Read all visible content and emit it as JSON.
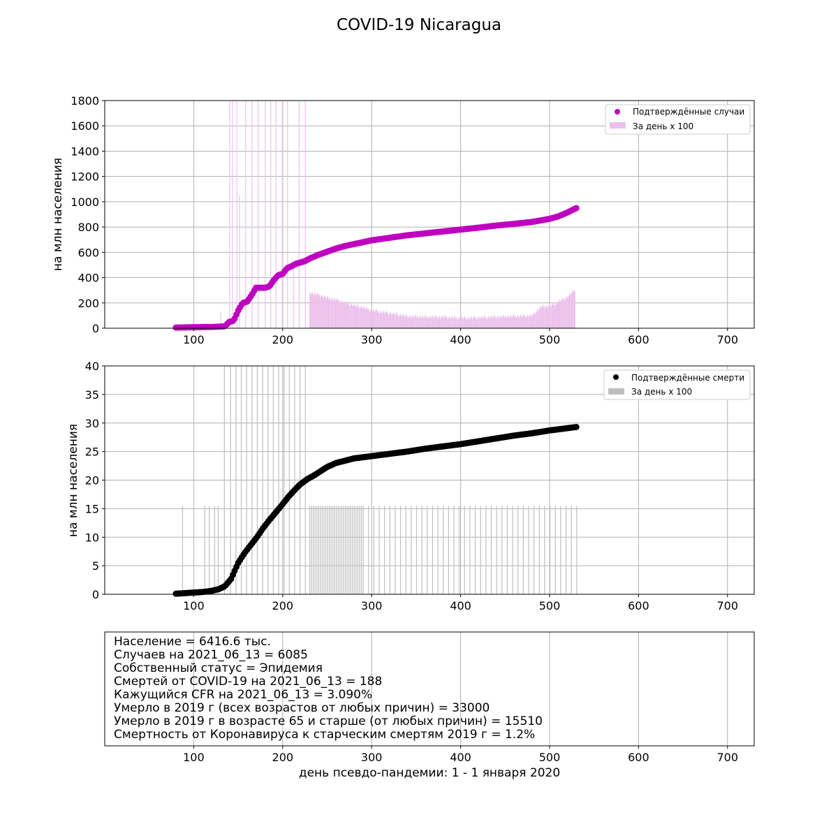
{
  "title": "COVID-19 Nicaragua",
  "chart_data": [
    {
      "type": "scatter",
      "ylabel": "на млн населения",
      "xlim": [
        0,
        730
      ],
      "ylim": [
        0,
        1800
      ],
      "xticks": [
        "100",
        "200",
        "300",
        "400",
        "500",
        "600",
        "700"
      ],
      "yticks": [
        "0",
        "200",
        "400",
        "600",
        "800",
        "1000",
        "1200",
        "1400",
        "1600",
        "1800"
      ],
      "grid": true,
      "legend_position": "top-right",
      "series": [
        {
          "name": "Подтверждённые случаи",
          "kind": "scatter",
          "color": "#bf00bf",
          "x": [
            80,
            100,
            120,
            135,
            140,
            145,
            150,
            155,
            160,
            165,
            170,
            175,
            180,
            185,
            190,
            195,
            200,
            205,
            210,
            215,
            220,
            225,
            230,
            240,
            250,
            260,
            270,
            280,
            290,
            300,
            320,
            340,
            360,
            380,
            400,
            420,
            440,
            460,
            480,
            500,
            510,
            520,
            530
          ],
          "y": [
            5,
            8,
            10,
            15,
            50,
            60,
            140,
            200,
            210,
            260,
            320,
            320,
            320,
            330,
            380,
            420,
            430,
            475,
            490,
            510,
            520,
            530,
            550,
            580,
            605,
            630,
            650,
            665,
            680,
            695,
            715,
            735,
            750,
            765,
            780,
            795,
            812,
            825,
            840,
            865,
            885,
            915,
            950
          ]
        },
        {
          "name": "За день х 100",
          "kind": "bar",
          "color": "#ecc0ec",
          "x": [
            230,
            240,
            250,
            260,
            270,
            280,
            290,
            300,
            320,
            340,
            360,
            380,
            400,
            420,
            440,
            460,
            480,
            490,
            500,
            510,
            520,
            528
          ],
          "y": [
            280,
            265,
            240,
            225,
            200,
            180,
            165,
            140,
            120,
            95,
            90,
            90,
            80,
            85,
            90,
            95,
            100,
            170,
            175,
            210,
            250,
            305
          ],
          "spikes_x": [
            130,
            140,
            143,
            148,
            151,
            158,
            165,
            172,
            180,
            186,
            192,
            199,
            205,
            212,
            218,
            225
          ],
          "spikes_y": [
            130,
            1800,
            1800,
            1800,
            1050,
            1800,
            1800,
            1800,
            1800,
            1800,
            1800,
            1800,
            1800,
            500,
            1800,
            1800
          ]
        }
      ]
    },
    {
      "type": "scatter",
      "ylabel": "на млн населения",
      "xlim": [
        0,
        730
      ],
      "ylim": [
        0,
        40
      ],
      "xticks": [
        "100",
        "200",
        "300",
        "400",
        "500",
        "600",
        "700"
      ],
      "yticks": [
        "0",
        "5",
        "10",
        "15",
        "20",
        "25",
        "30",
        "35",
        "40"
      ],
      "grid": true,
      "legend_position": "top-right",
      "series": [
        {
          "name": "Подтверждённые смерти",
          "kind": "scatter",
          "color": "#000000",
          "x": [
            80,
            90,
            100,
            110,
            120,
            128,
            135,
            142,
            150,
            157,
            164,
            171,
            178,
            185,
            192,
            199,
            206,
            213,
            220,
            228,
            235,
            242,
            250,
            260,
            270,
            280,
            290,
            300,
            320,
            340,
            360,
            380,
            400,
            420,
            440,
            460,
            480,
            500,
            515,
            530
          ],
          "y": [
            0.1,
            0.2,
            0.3,
            0.4,
            0.6,
            0.9,
            1.4,
            2.7,
            5.5,
            7.2,
            8.6,
            10.0,
            11.6,
            13.0,
            14.3,
            15.6,
            17.0,
            18.2,
            19.3,
            20.2,
            20.8,
            21.5,
            22.3,
            23.0,
            23.4,
            23.8,
            24.0,
            24.2,
            24.6,
            25.0,
            25.5,
            25.9,
            26.3,
            26.8,
            27.3,
            27.8,
            28.2,
            28.7,
            29.0,
            29.3
          ]
        },
        {
          "name": "За день х 100",
          "kind": "bar",
          "color": "#bfbfbf",
          "spikes_x": [
            87,
            112,
            117,
            123,
            127,
            134,
            141,
            147,
            153,
            159,
            165,
            171,
            177,
            183,
            189,
            195,
            201,
            207,
            213,
            219,
            225
          ],
          "spikes_y": [
            15.5,
            15.5,
            15.5,
            15.5,
            15.5,
            40,
            40,
            40,
            40,
            40,
            40,
            40,
            40,
            40,
            40,
            40,
            40,
            40,
            40,
            40,
            40
          ],
          "bars_x_start": 230,
          "bars_x_end": 530,
          "bars_y": 15.5
        }
      ]
    }
  ],
  "info": {
    "lines": [
      "Население = 6416.6 тыс.",
      "Случаев на 2021_06_13 = 6085",
      "Собственный статус = Эпидемия",
      "Смертей от COVID-19 на 2021_06_13 = 188",
      "Кажущийся CFR на 2021_06_13 = 3.090%",
      "Умерло в 2019 г (всех возрастов от любых причин) = 33000",
      "Умерло в 2019 г в возрасте 65 и старше (от любых причин) = 15510",
      "Смертность от Коронавируса к старческим смертям 2019 г = 1.2%"
    ],
    "xticks": [
      "100",
      "200",
      "300",
      "400",
      "500",
      "600",
      "700"
    ],
    "xlabel": "день псевдо-пандемии: 1 - 1 января 2020"
  }
}
